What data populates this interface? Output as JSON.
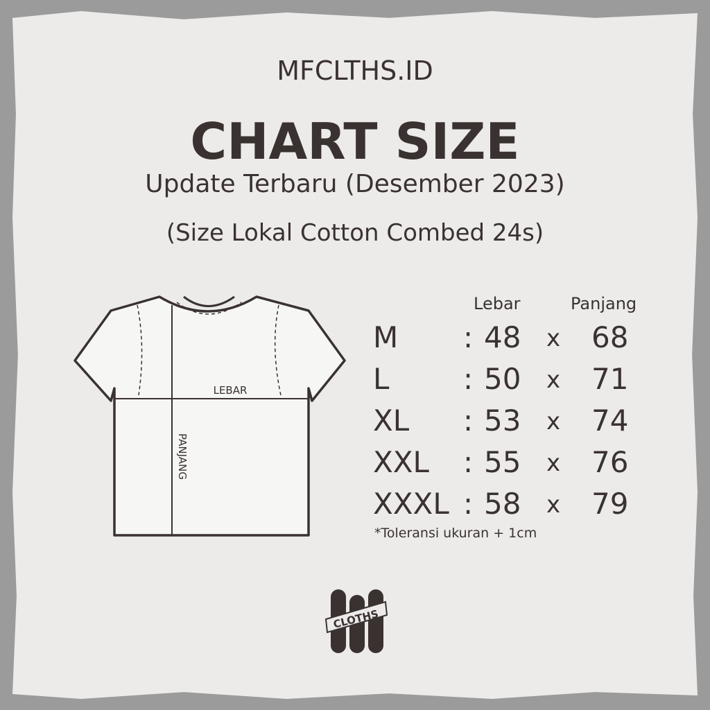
{
  "brand": "MFCLTHS.ID",
  "title": "CHART SIZE",
  "subtitle": "Update Terbaru (Desember 2023)",
  "subtitle2": "(Size Lokal Cotton Combed 24s)",
  "diagram": {
    "width_label": "LEBAR",
    "length_label": "PANJANG"
  },
  "table": {
    "headers": {
      "width": "Lebar",
      "length": "Panjang"
    },
    "separator": ":",
    "times": "x",
    "rows": [
      {
        "size": "M",
        "width": "48",
        "length": "68"
      },
      {
        "size": "L",
        "width": "50",
        "length": "71"
      },
      {
        "size": "XL",
        "width": "53",
        "length": "74"
      },
      {
        "size": "XXL",
        "width": "55",
        "length": "76"
      },
      {
        "size": "XXXL",
        "width": "58",
        "length": "79"
      }
    ]
  },
  "note": "*Toleransi ukuran + 1cm",
  "logo": {
    "text": "CLOTHS"
  },
  "colors": {
    "text": "#3a3231",
    "paper": "#ecebe9",
    "background": "#9b9b9b"
  }
}
